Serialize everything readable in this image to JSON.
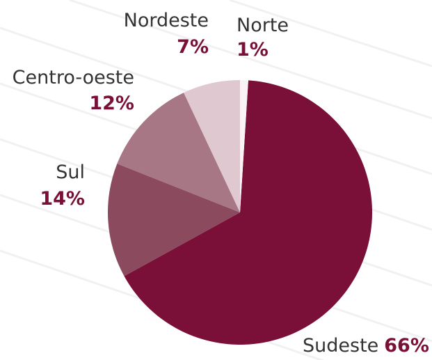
{
  "chart_data": {
    "type": "pie",
    "categories": [
      "Sudeste",
      "Sul",
      "Centro-oeste",
      "Nordeste",
      "Norte"
    ],
    "values": [
      66,
      14,
      12,
      7,
      1
    ],
    "value_labels": [
      "66%",
      "14%",
      "12%",
      "7%",
      "1%"
    ],
    "colors": [
      "#7a1038",
      "#8b4a5e",
      "#a87785",
      "#e0c8d0",
      "#faf3f5"
    ]
  }
}
